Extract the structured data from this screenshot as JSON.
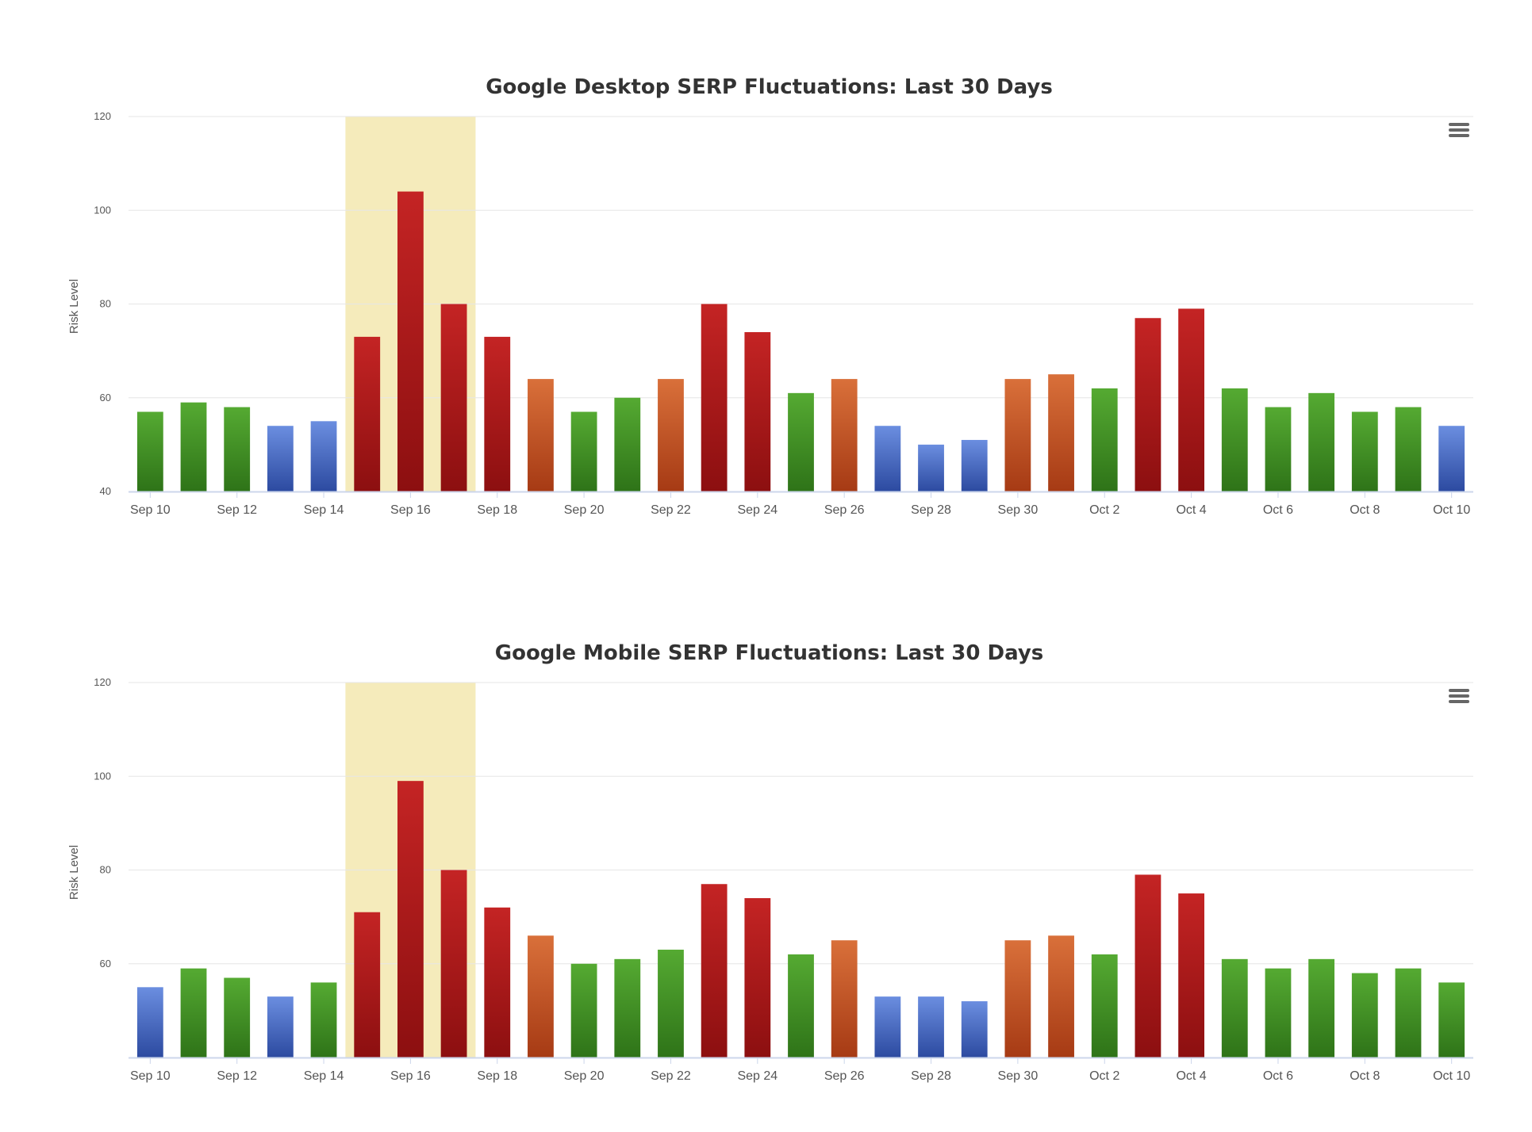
{
  "colors": {
    "green_top": "#55aa32",
    "green_bottom": "#2e7318",
    "blue_top": "#6b8ee0",
    "blue_bottom": "#2c4aa0",
    "orange_top": "#d9703a",
    "orange_bottom": "#a63a14",
    "red_top": "#c42424",
    "red_bottom": "#8c0f10",
    "highlight": "#f5ebbb",
    "grid": "#e6e6e6",
    "axis": "#ccd6eb"
  },
  "chart_data": [
    {
      "type": "bar",
      "title": "Google Desktop SERP Fluctuations: Last 30 Days",
      "ylabel": "Risk Level",
      "xlabel": "",
      "ylim": [
        40,
        120
      ],
      "yticks": [
        40,
        60,
        80,
        100,
        120
      ],
      "legend": "none",
      "highlight_range": [
        "Sep 15",
        "Sep 17"
      ],
      "categories": [
        "Sep 10",
        "Sep 11",
        "Sep 12",
        "Sep 13",
        "Sep 14",
        "Sep 15",
        "Sep 16",
        "Sep 17",
        "Sep 18",
        "Sep 19",
        "Sep 20",
        "Sep 21",
        "Sep 22",
        "Sep 23",
        "Sep 24",
        "Sep 25",
        "Sep 26",
        "Sep 27",
        "Sep 28",
        "Sep 29",
        "Sep 30",
        "Oct 1",
        "Oct 2",
        "Oct 3",
        "Oct 4",
        "Oct 5",
        "Oct 6",
        "Oct 7",
        "Oct 8",
        "Oct 9",
        "Oct 10"
      ],
      "tick_labels": [
        "Sep 10",
        "Sep 12",
        "Sep 14",
        "Sep 16",
        "Sep 18",
        "Sep 20",
        "Sep 22",
        "Sep 24",
        "Sep 26",
        "Sep 28",
        "Sep 30",
        "Oct 2",
        "Oct 4",
        "Oct 6",
        "Oct 8",
        "Oct 10"
      ],
      "values": [
        57,
        59,
        58,
        54,
        55,
        73,
        104,
        80,
        73,
        64,
        57,
        60,
        64,
        80,
        74,
        61,
        64,
        54,
        50,
        51,
        64,
        65,
        62,
        77,
        79,
        62,
        58,
        61,
        57,
        58,
        54
      ],
      "levels": [
        "green",
        "green",
        "green",
        "blue",
        "blue",
        "red",
        "red",
        "red",
        "red",
        "orange",
        "green",
        "green",
        "orange",
        "red",
        "red",
        "green",
        "orange",
        "blue",
        "blue",
        "blue",
        "orange",
        "orange",
        "green",
        "red",
        "red",
        "green",
        "green",
        "green",
        "green",
        "green",
        "blue"
      ]
    },
    {
      "type": "bar",
      "title": "Google Mobile SERP Fluctuations: Last 30 Days",
      "ylabel": "Risk Level",
      "xlabel": "",
      "ylim": [
        40,
        120
      ],
      "yticks": [
        60,
        80,
        100,
        120
      ],
      "legend": "none",
      "highlight_range": [
        "Sep 15",
        "Sep 17"
      ],
      "categories": [
        "Sep 10",
        "Sep 11",
        "Sep 12",
        "Sep 13",
        "Sep 14",
        "Sep 15",
        "Sep 16",
        "Sep 17",
        "Sep 18",
        "Sep 19",
        "Sep 20",
        "Sep 21",
        "Sep 22",
        "Sep 23",
        "Sep 24",
        "Sep 25",
        "Sep 26",
        "Sep 27",
        "Sep 28",
        "Sep 29",
        "Sep 30",
        "Oct 1",
        "Oct 2",
        "Oct 3",
        "Oct 4",
        "Oct 5",
        "Oct 6",
        "Oct 7",
        "Oct 8",
        "Oct 9",
        "Oct 10"
      ],
      "tick_labels": [
        "Sep 10",
        "Sep 12",
        "Sep 14",
        "Sep 16",
        "Sep 18",
        "Sep 20",
        "Sep 22",
        "Sep 24",
        "Sep 26",
        "Sep 28",
        "Sep 30",
        "Oct 2",
        "Oct 4",
        "Oct 6",
        "Oct 8",
        "Oct 10"
      ],
      "values": [
        55,
        59,
        57,
        53,
        56,
        71,
        99,
        80,
        72,
        66,
        60,
        61,
        63,
        77,
        74,
        62,
        65,
        53,
        53,
        52,
        65,
        66,
        62,
        79,
        75,
        61,
        59,
        61,
        58,
        59,
        56
      ],
      "levels": [
        "blue",
        "green",
        "green",
        "blue",
        "green",
        "red",
        "red",
        "red",
        "red",
        "orange",
        "green",
        "green",
        "green",
        "red",
        "red",
        "green",
        "orange",
        "blue",
        "blue",
        "blue",
        "orange",
        "orange",
        "green",
        "red",
        "red",
        "green",
        "green",
        "green",
        "green",
        "green",
        "green"
      ]
    }
  ]
}
